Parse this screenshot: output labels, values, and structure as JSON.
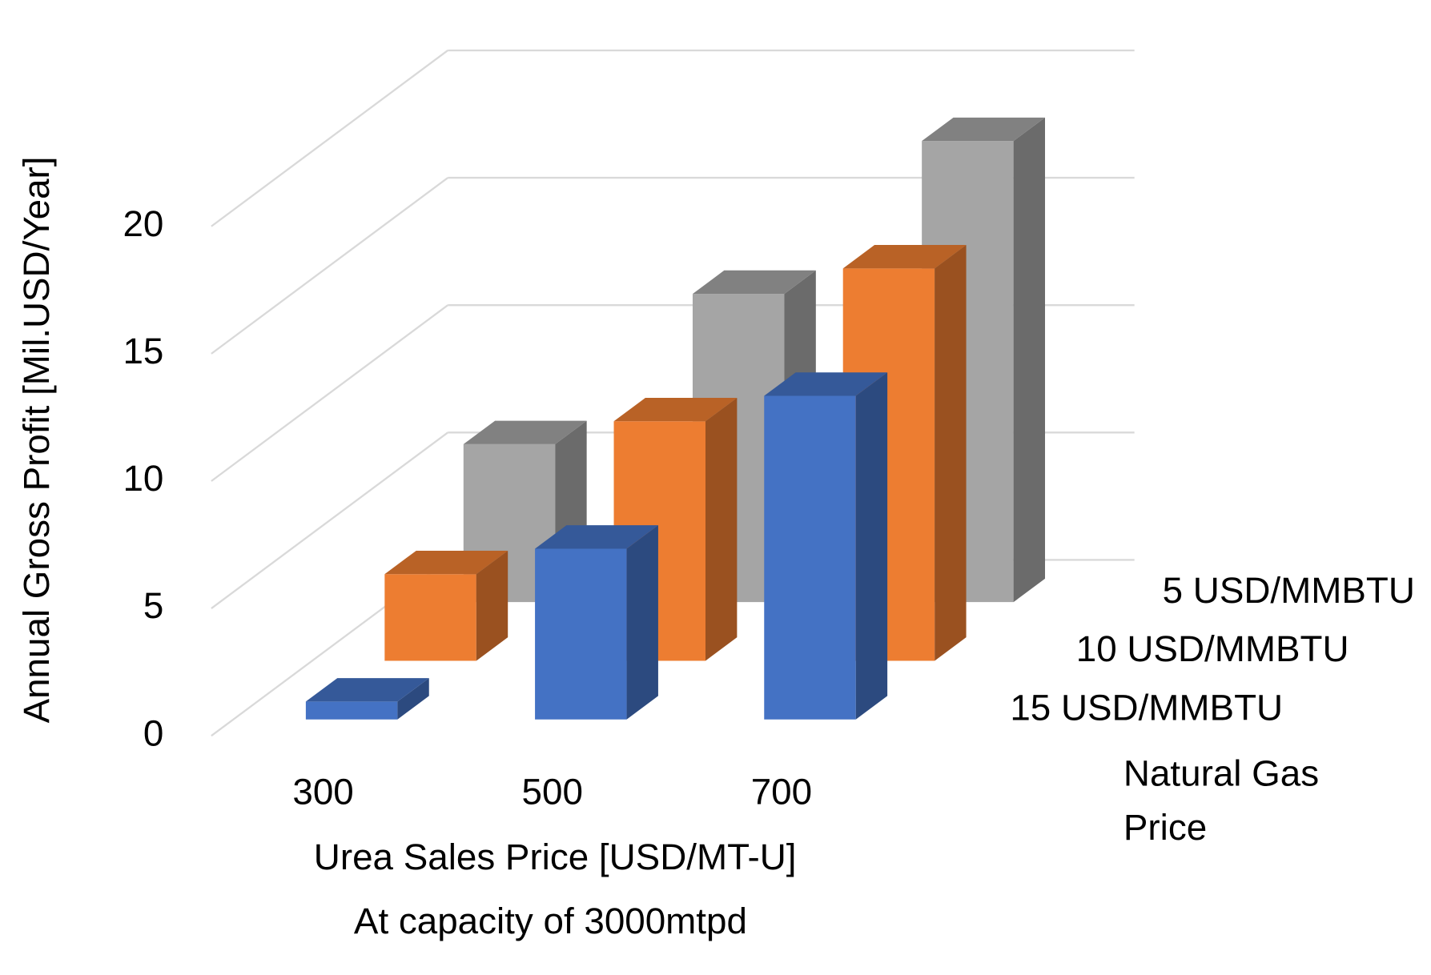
{
  "chart_data": {
    "type": "bar3d",
    "y_axis_title": "Annual Gross Profit [Mil.USD/Year]",
    "x_axis_title": "Urea Sales Price [USD/MT-U]",
    "subtitle": "At capacity of 3000mtpd",
    "depth_axis_title": [
      "Natural Gas",
      "Price"
    ],
    "categories": [
      "300",
      "500",
      "700"
    ],
    "series": [
      {
        "name": "5 USD/MMBTU",
        "color": "#a5a5a5",
        "values": [
          6.2,
          12.1,
          18.1
        ]
      },
      {
        "name": "10 USD/MMBTU",
        "color": "#ed7d31",
        "values": [
          3.4,
          9.4,
          15.4
        ]
      },
      {
        "name": "15 USD/MMBTU",
        "color": "#4472c4",
        "values": [
          0.7,
          6.7,
          12.7
        ]
      }
    ],
    "ylim": [
      0,
      20
    ],
    "yticks": [
      0,
      5,
      10,
      15,
      20
    ],
    "grid": true
  }
}
